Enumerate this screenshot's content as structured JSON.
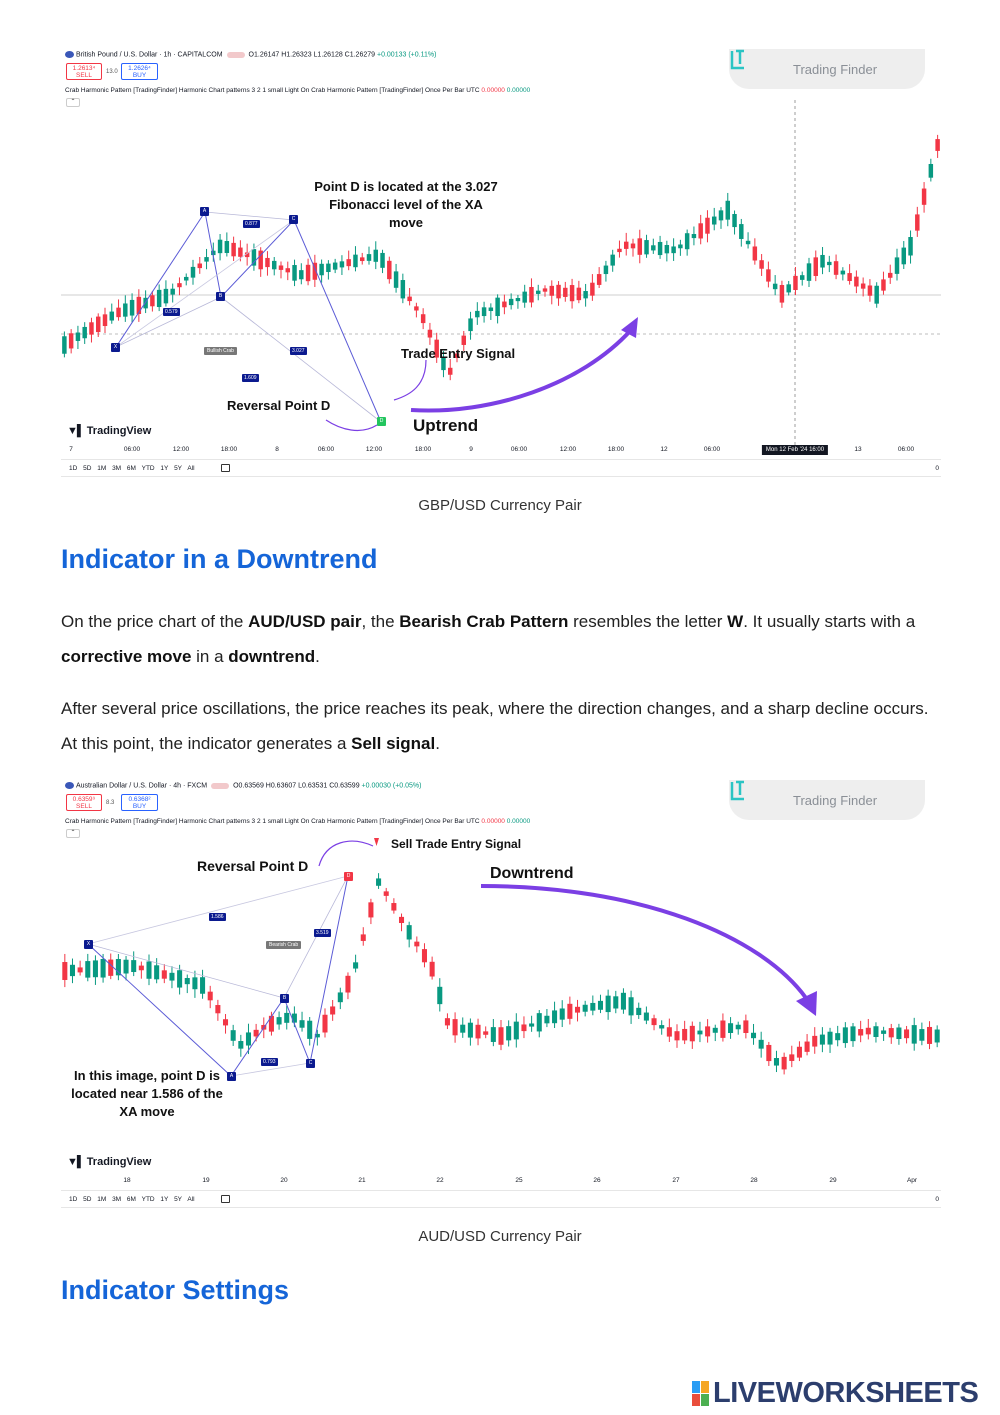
{
  "chart1": {
    "symbol": "British Pound / U.S. Dollar · 1h · CAPITALCOM",
    "ohlc": "O1.26147 H1.26323 L1.26128 C1.26279",
    "change": "+0.00133 (+0.11%)",
    "sell_price": "1.2613⁴",
    "sell_label": "SELL",
    "spread": "13.0",
    "buy_price": "1.2626⁴",
    "buy_label": "BUY",
    "indicator_name": "Crab Harmonic Pattern [TradingFinder] Harmonic Chart patterns 3 2 1 small Light On Crab Harmonic Pattern [TradingFinder] Once Per Bar UTC",
    "indicator_v1": "0.00000",
    "indicator_v2": "0.00000",
    "watermark": "Trading Finder",
    "tv_brand": "TradingView",
    "time_labels": [
      "7",
      "06:00",
      "12:00",
      "18:00",
      "8",
      "06:00",
      "12:00",
      "18:00",
      "9",
      "06:00",
      "12:00",
      "18:00",
      "12",
      "06:00",
      "13",
      "06:00"
    ],
    "crosshair_time": "Mon 12 Feb '24   16:00",
    "ranges": "1D 5D 1M 3M 6M YTD 1Y 5Y All",
    "axis_zero": "0",
    "annotations": {
      "point_d_note": "Point D is located at the 3.027 Fibonacci level of the XA move",
      "trade_entry": "Trade Entry Signal",
      "reversal": "Reversal Point D",
      "trend": "Uptrend"
    },
    "pattern_labels": {
      "r1": "0.877",
      "r2": "0.579",
      "r3": "3.027",
      "r4": "1.609",
      "tag": "Bullish Crab"
    },
    "points": {
      "x": "X",
      "a": "A",
      "b": "B",
      "c": "C",
      "d": "D"
    }
  },
  "caption1": "GBP/USD Currency Pair",
  "section1": {
    "heading": "Indicator in a Downtrend",
    "p1_t1": "On the price chart of the ",
    "p1_b1": "AUD/USD pair",
    "p1_t2": ", the ",
    "p1_b2": "Bearish Crab Pattern",
    "p1_t3": " resembles the letter ",
    "p1_b3": "W",
    "p1_t4": ". It usually starts with a ",
    "p1_b4": "corrective move",
    "p1_t5": " in a ",
    "p1_b5": "downtrend",
    "p1_t6": ".",
    "p2_t1": "After several price oscillations, the price reaches its peak, where the direction changes, and a sharp decline occurs. At this point, the indicator generates a ",
    "p2_b1": "Sell signal",
    "p2_t2": "."
  },
  "chart2": {
    "symbol": "Australian Dollar / U.S. Dollar · 4h · FXCM",
    "ohlc": "O0.63569 H0.63607 L0.63531 C0.63599",
    "change": "+0.00030 (+0.05%)",
    "sell_price": "0.6359⁹",
    "sell_label": "SELL",
    "spread": "8.3",
    "buy_price": "0.6368²",
    "buy_label": "BUY",
    "indicator_name": "Crab Harmonic Pattern [TradingFinder] Harmonic Chart patterns 3 2 1 small Light On Crab Harmonic Pattern [TradingFinder] Once Per Bar UTC",
    "indicator_v1": "0.00000",
    "indicator_v2": "0.00000",
    "watermark": "Trading Finder",
    "tv_brand": "TradingView",
    "time_labels": [
      "18",
      "19",
      "20",
      "21",
      "22",
      "25",
      "26",
      "27",
      "28",
      "29",
      "Apr"
    ],
    "ranges": "1D 5D 1M 3M 6M YTD 1Y 5Y All",
    "axis_zero": "0",
    "annotations": {
      "sell_entry": "Sell Trade Entry Signal",
      "reversal": "Reversal Point D",
      "trend": "Downtrend",
      "note": "In this image, point D is located near 1.586 of the XA move"
    },
    "pattern_labels": {
      "r1": "1.586",
      "r2": "3.519",
      "r3": "0.793",
      "tag": "Bearish Crab"
    },
    "points": {
      "x": "X",
      "a": "A",
      "b": "B",
      "c": "C",
      "d": "D"
    }
  },
  "caption2": "AUD/USD Currency Pair",
  "section2": {
    "heading": "Indicator Settings"
  },
  "footer_logo": "LIVEWORKSHEETS",
  "colors": {
    "heading": "#1565d8",
    "bull": "#089981",
    "bear": "#f23645",
    "arrow": "#7b3fe4",
    "pattern": "#0b1a8f"
  }
}
